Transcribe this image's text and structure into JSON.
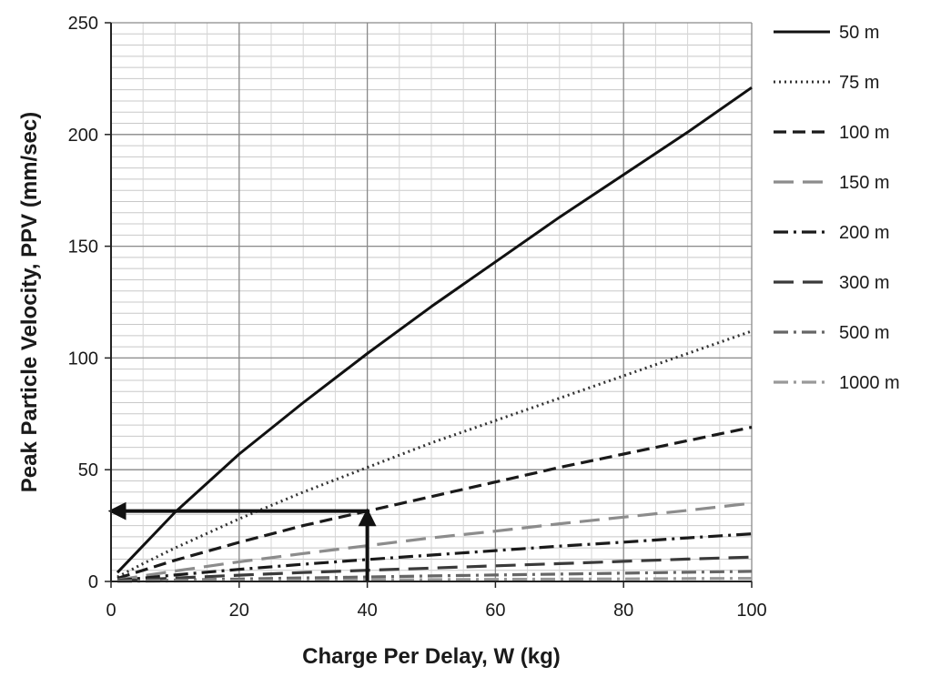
{
  "chart_data": {
    "type": "line",
    "title": "",
    "xlabel": "Charge Per Delay, W (kg)",
    "ylabel": "Peak Particle Velocity, PPV (mm/sec)",
    "xlim": [
      0,
      100
    ],
    "ylim": [
      0,
      250
    ],
    "xticks": [
      0,
      20,
      40,
      60,
      80,
      100
    ],
    "yticks": [
      0,
      50,
      100,
      150,
      200,
      250
    ],
    "grid": {
      "major": true,
      "minor_horizontal_step": 5,
      "minor_vertical_step": 5
    },
    "legend_position": "right",
    "x": [
      1,
      5,
      10,
      20,
      30,
      40,
      50,
      60,
      70,
      80,
      90,
      100
    ],
    "series": [
      {
        "name": "50 m",
        "style": "solid",
        "color": "#111111",
        "values": [
          4,
          16,
          31,
          57,
          80,
          102,
          123,
          143,
          163,
          182,
          201,
          221
        ]
      },
      {
        "name": "75 m",
        "style": "dotted",
        "color": "#333333",
        "values": [
          2,
          8,
          15,
          28,
          40,
          51,
          62,
          72,
          82,
          92,
          102,
          112
        ]
      },
      {
        "name": "100 m",
        "style": "dashed",
        "color": "#1a1a1a",
        "values": [
          1.4,
          5,
          9.5,
          17.5,
          25,
          31.5,
          38,
          44.5,
          51,
          57,
          63,
          69
        ]
      },
      {
        "name": "150 m",
        "style": "longdash",
        "color": "#8c8c8c",
        "values": [
          0.7,
          2.5,
          4.7,
          8.8,
          12.5,
          16,
          19.5,
          22.5,
          25.8,
          28.8,
          31.8,
          35
        ]
      },
      {
        "name": "200 m",
        "style": "dashdot",
        "color": "#1a1a1a",
        "values": [
          0.4,
          1.5,
          2.9,
          5.4,
          7.7,
          9.8,
          11.8,
          13.8,
          15.8,
          17.6,
          19.5,
          21.3
        ]
      },
      {
        "name": "300 m",
        "style": "longdash",
        "color": "#3a3a3a",
        "values": [
          0.2,
          0.8,
          1.5,
          2.8,
          4,
          5,
          6,
          7,
          8,
          9,
          10,
          10.9
        ]
      },
      {
        "name": "500 m",
        "style": "dashdot",
        "color": "#666666",
        "values": [
          0.1,
          0.3,
          0.6,
          1.1,
          1.6,
          2,
          2.5,
          2.9,
          3.3,
          3.7,
          4.1,
          4.5
        ]
      },
      {
        "name": "1000 m",
        "style": "dashdot",
        "color": "#999999",
        "values": [
          0.03,
          0.1,
          0.2,
          0.35,
          0.5,
          0.65,
          0.8,
          0.95,
          1.05,
          1.15,
          1.3,
          1.4
        ]
      }
    ],
    "annotations": [
      {
        "type": "arrow",
        "from": [
          40,
          0
        ],
        "to": [
          40,
          31.5
        ]
      },
      {
        "type": "arrow",
        "from": [
          40,
          31.5
        ],
        "to": [
          0,
          31.5
        ]
      }
    ]
  }
}
